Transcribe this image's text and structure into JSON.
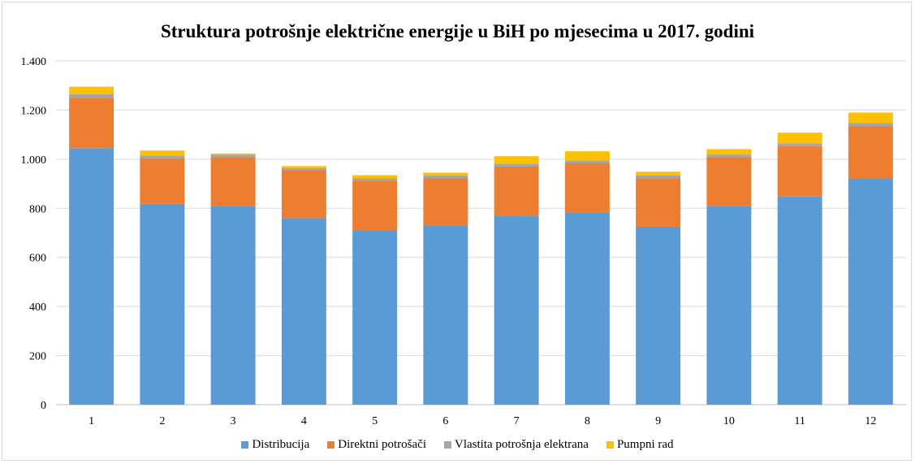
{
  "chart_data": {
    "type": "bar",
    "stacked": true,
    "title": "Struktura potrošnje električne energije u BiH po mjesecima u 2017. godini",
    "xlabel": "",
    "ylabel": "",
    "ylim": [
      0,
      1400
    ],
    "yticks": [
      0,
      200,
      400,
      600,
      800,
      1000,
      1200,
      1400
    ],
    "ytick_labels": [
      "0",
      "200",
      "400",
      "600",
      "800",
      "1.000",
      "1.200",
      "1.400"
    ],
    "grid": true,
    "legend_position": "bottom",
    "categories": [
      "1",
      "2",
      "3",
      "4",
      "5",
      "6",
      "7",
      "8",
      "9",
      "10",
      "11",
      "12"
    ],
    "series": [
      {
        "name": "Distribucija",
        "color": "#5b9bd5",
        "values": [
          1045,
          818,
          808,
          760,
          710,
          728,
          770,
          783,
          725,
          808,
          848,
          920
        ]
      },
      {
        "name": "Direktni potrošači",
        "color": "#ed7d31",
        "values": [
          205,
          185,
          200,
          195,
          203,
          195,
          200,
          200,
          198,
          200,
          205,
          215
        ]
      },
      {
        "name": "Vlastita potrošnja elektrana",
        "color": "#a5a5a5",
        "values": [
          15,
          12,
          10,
          9,
          10,
          10,
          12,
          12,
          11,
          11,
          12,
          13
        ]
      },
      {
        "name": "Pumpni rad",
        "color": "#ffc000",
        "values": [
          30,
          20,
          5,
          8,
          12,
          12,
          30,
          37,
          15,
          22,
          43,
          42
        ]
      }
    ]
  }
}
